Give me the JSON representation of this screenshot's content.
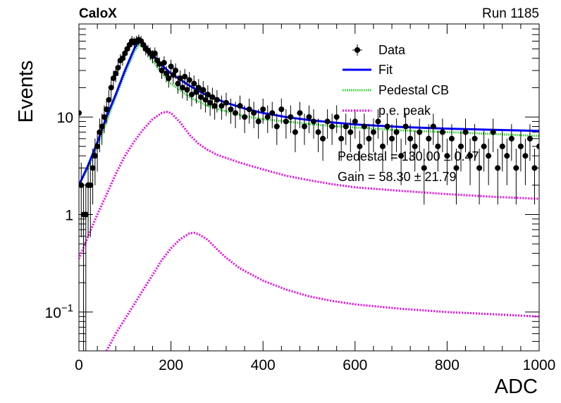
{
  "header": {
    "experiment": "CaloX",
    "run": "Run 1185"
  },
  "annotation": {
    "pedestal": "Pedestal = 130.00 ± 0.47",
    "gain": "Gain = 58.30 ± 21.79"
  },
  "colors": {
    "data": "#000000",
    "fit": "#0000ff",
    "pedestal_cb": "#22cc22",
    "pe_peak": "#ee00ee"
  },
  "chart_data": {
    "type": "scatter",
    "title": "",
    "xlabel": "ADC",
    "ylabel": "Events",
    "xlim": [
      0,
      1000
    ],
    "ylim": [
      0.04,
      90
    ],
    "yscale": "log",
    "xticks": [
      "0",
      "200",
      "400",
      "600",
      "800",
      "1000"
    ],
    "yticks": [
      {
        "value": 0.1,
        "base": "10",
        "exp": "−1"
      },
      {
        "value": 1,
        "label": "1"
      },
      {
        "value": 10,
        "label": "10"
      }
    ],
    "legend": {
      "position": "top-right",
      "entries": [
        "Data",
        "Fit",
        "Pedestal CB",
        "p.e. peak"
      ]
    },
    "series": [
      {
        "name": "Data",
        "style": "points-with-errors",
        "x": [
          0,
          5,
          10,
          15,
          20,
          25,
          30,
          35,
          40,
          45,
          50,
          55,
          60,
          65,
          70,
          75,
          80,
          85,
          90,
          95,
          100,
          105,
          110,
          115,
          120,
          125,
          130,
          135,
          140,
          145,
          150,
          155,
          160,
          165,
          170,
          175,
          180,
          185,
          190,
          195,
          200,
          205,
          210,
          215,
          220,
          225,
          230,
          235,
          240,
          245,
          250,
          255,
          260,
          265,
          270,
          275,
          280,
          285,
          290,
          295,
          300,
          310,
          320,
          330,
          340,
          350,
          360,
          370,
          380,
          390,
          400,
          410,
          420,
          430,
          440,
          450,
          460,
          470,
          480,
          490,
          500,
          510,
          520,
          530,
          540,
          550,
          560,
          570,
          580,
          590,
          600,
          610,
          620,
          630,
          640,
          650,
          660,
          670,
          680,
          690,
          700,
          710,
          720,
          730,
          740,
          750,
          760,
          770,
          780,
          790,
          800,
          810,
          820,
          830,
          840,
          850,
          860,
          870,
          880,
          890,
          900,
          910,
          920,
          930,
          940,
          950,
          960,
          970,
          980,
          990,
          1000
        ],
        "y": [
          11,
          2,
          1,
          1,
          2,
          2,
          3,
          4,
          5,
          7,
          8,
          10,
          12,
          15,
          20,
          25,
          28,
          32,
          38,
          40,
          45,
          50,
          55,
          60,
          58,
          60,
          62,
          60,
          55,
          50,
          48,
          45,
          42,
          45,
          38,
          35,
          30,
          36,
          28,
          25,
          33,
          27,
          30,
          22,
          25,
          20,
          26,
          19,
          24,
          17,
          22,
          18,
          20,
          16,
          19,
          15,
          17,
          14,
          16,
          13,
          15,
          13,
          14,
          12,
          11,
          13,
          10,
          12,
          11,
          9,
          12,
          10,
          11,
          8,
          12,
          9,
          10,
          7,
          11,
          8,
          10,
          9,
          7,
          6,
          9,
          8,
          10,
          6,
          8,
          7,
          9,
          5,
          8,
          6,
          7,
          9,
          5,
          8,
          6,
          7,
          4,
          8,
          6,
          5,
          7,
          3,
          6,
          8,
          5,
          7,
          4,
          6,
          3,
          5,
          7,
          4,
          6,
          3,
          5,
          4,
          7,
          3,
          5,
          4,
          6,
          3,
          5,
          4,
          6,
          3,
          5
        ]
      },
      {
        "name": "Fit",
        "style": "line",
        "x": [
          0,
          20,
          40,
          60,
          80,
          100,
          120,
          130,
          140,
          160,
          180,
          200,
          240,
          280,
          320,
          360,
          400,
          450,
          500,
          550,
          600,
          700,
          800,
          900,
          1000
        ],
        "y": [
          2,
          3.2,
          5.5,
          10,
          17,
          30,
          50,
          60,
          57,
          44,
          34,
          28,
          21,
          16.5,
          14,
          12.2,
          11,
          10,
          9.3,
          8.8,
          8.4,
          7.9,
          7.6,
          7.4,
          7.2
        ]
      },
      {
        "name": "Pedestal CB",
        "style": "dotted",
        "x": [
          0,
          20,
          40,
          60,
          80,
          100,
          120,
          130,
          140,
          160,
          180,
          200,
          240,
          280,
          320,
          360,
          400,
          450,
          500,
          550,
          600,
          700,
          800,
          900,
          1000
        ],
        "y": [
          2,
          3,
          5,
          9,
          16,
          28,
          46,
          55,
          52,
          38,
          28,
          22,
          16,
          13,
          11.4,
          10.2,
          9.5,
          9,
          8.5,
          8.1,
          7.8,
          7.3,
          7.0,
          6.7,
          6.4
        ]
      },
      {
        "name": "p.e. peak",
        "style": "dotted",
        "x": [
          0,
          20,
          40,
          60,
          80,
          100,
          120,
          140,
          160,
          180,
          190,
          200,
          220,
          240,
          260,
          280,
          300,
          350,
          400,
          450,
          500,
          550,
          600,
          700,
          800,
          900,
          1000
        ],
        "y": [
          0.35,
          0.6,
          1,
          1.6,
          2.6,
          4,
          5.6,
          7.5,
          9.5,
          11,
          11.3,
          11,
          8.8,
          6.6,
          5.3,
          4.6,
          4.1,
          3.4,
          2.9,
          2.5,
          2.25,
          2.05,
          1.9,
          1.75,
          1.62,
          1.52,
          1.45
        ]
      },
      {
        "name": "p.e. peak",
        "style": "dotted",
        "x": [
          60,
          80,
          100,
          120,
          140,
          160,
          180,
          200,
          220,
          240,
          250,
          260,
          280,
          300,
          320,
          350,
          400,
          450,
          500,
          550,
          600,
          700,
          800,
          900,
          1000
        ],
        "y": [
          0.04,
          0.06,
          0.085,
          0.12,
          0.17,
          0.24,
          0.34,
          0.45,
          0.56,
          0.64,
          0.65,
          0.63,
          0.55,
          0.44,
          0.36,
          0.28,
          0.21,
          0.17,
          0.145,
          0.13,
          0.12,
          0.108,
          0.1,
          0.095,
          0.09
        ]
      }
    ]
  }
}
